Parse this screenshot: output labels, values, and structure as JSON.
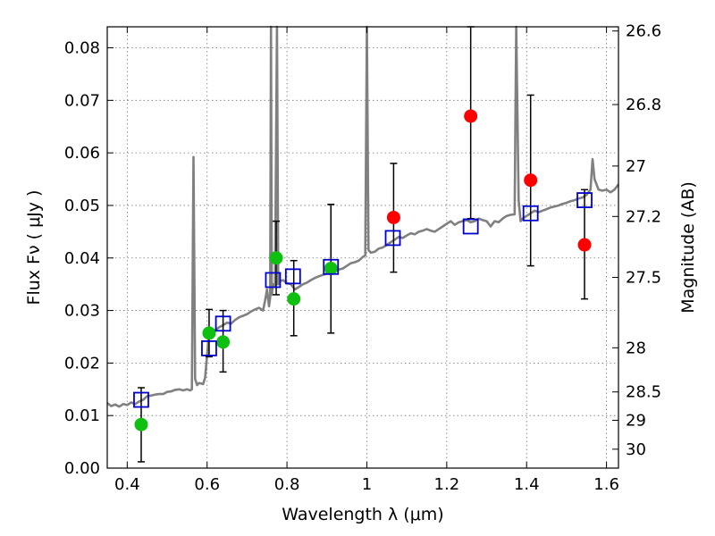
{
  "chart_data": {
    "type": "scatter",
    "xlabel": "Wavelength  λ (μm)",
    "ylabel": "Flux  Fν  ( μJy )",
    "y2label": "Magnitude (AB)",
    "xlim": [
      0.35,
      1.63
    ],
    "ylim": [
      0.0,
      0.084
    ],
    "grid": true,
    "x_ticks": [
      0.4,
      0.6,
      0.8,
      1.0,
      1.2,
      1.4,
      1.6
    ],
    "x_tick_labels": [
      "0.4",
      "0.6",
      "0.8",
      "1",
      "1.2",
      "1.4",
      "1.6"
    ],
    "y_ticks": [
      0.0,
      0.01,
      0.02,
      0.03,
      0.04,
      0.05,
      0.06,
      0.07,
      0.08
    ],
    "y_tick_labels": [
      "0.00",
      "0.01",
      "0.02",
      "0.03",
      "0.04",
      "0.05",
      "0.06",
      "0.07",
      "0.08"
    ],
    "y2_ticks": [
      {
        "label": "26.6",
        "flux": 0.0832
      },
      {
        "label": "26.8",
        "flux": 0.0692
      },
      {
        "label": "27",
        "flux": 0.0575
      },
      {
        "label": "27.2",
        "flux": 0.0479
      },
      {
        "label": "27.5",
        "flux": 0.0363
      },
      {
        "label": "28",
        "flux": 0.0229
      },
      {
        "label": "28.5",
        "flux": 0.0145
      },
      {
        "label": "29",
        "flux": 0.0091
      },
      {
        "label": "30",
        "flux": 0.0036
      }
    ],
    "colors": {
      "model": "#808080",
      "model_photometry": "#0000cc",
      "detected": "#10c010",
      "upper_limit": "#ff0000",
      "errorbar": "#000000"
    },
    "series": [
      {
        "role": "model",
        "style": "line",
        "points": [
          [
            0.35,
            0.0124
          ],
          [
            0.36,
            0.0118
          ],
          [
            0.37,
            0.0121
          ],
          [
            0.38,
            0.0117
          ],
          [
            0.39,
            0.0122
          ],
          [
            0.4,
            0.012
          ],
          [
            0.41,
            0.0125
          ],
          [
            0.42,
            0.0122
          ],
          [
            0.43,
            0.0127
          ],
          [
            0.44,
            0.013
          ],
          [
            0.45,
            0.0137
          ],
          [
            0.46,
            0.0138
          ],
          [
            0.47,
            0.014
          ],
          [
            0.48,
            0.0141
          ],
          [
            0.49,
            0.0141
          ],
          [
            0.5,
            0.0145
          ],
          [
            0.51,
            0.0146
          ],
          [
            0.52,
            0.0149
          ],
          [
            0.53,
            0.015
          ],
          [
            0.54,
            0.0148
          ],
          [
            0.55,
            0.015
          ],
          [
            0.558,
            0.0148
          ],
          [
            0.562,
            0.015
          ],
          [
            0.566,
            0.0592
          ],
          [
            0.57,
            0.017
          ],
          [
            0.575,
            0.0158
          ],
          [
            0.58,
            0.0162
          ],
          [
            0.59,
            0.016
          ],
          [
            0.595,
            0.0172
          ],
          [
            0.6,
            0.0215
          ],
          [
            0.605,
            0.026
          ],
          [
            0.61,
            0.0255
          ],
          [
            0.62,
            0.0262
          ],
          [
            0.63,
            0.0268
          ],
          [
            0.64,
            0.0272
          ],
          [
            0.65,
            0.0277
          ],
          [
            0.66,
            0.0275
          ],
          [
            0.67,
            0.0282
          ],
          [
            0.68,
            0.0287
          ],
          [
            0.69,
            0.029
          ],
          [
            0.7,
            0.0293
          ],
          [
            0.71,
            0.0298
          ],
          [
            0.72,
            0.0302
          ],
          [
            0.73,
            0.0305
          ],
          [
            0.74,
            0.03
          ],
          [
            0.745,
            0.0318
          ],
          [
            0.75,
            0.034
          ],
          [
            0.755,
            0.0308
          ],
          [
            0.758,
            0.0325
          ],
          [
            0.76,
            0.0843
          ],
          [
            0.762,
            0.033
          ],
          [
            0.765,
            0.035
          ],
          [
            0.77,
            0.0345
          ],
          [
            0.775,
            0.0843
          ],
          [
            0.778,
            0.035
          ],
          [
            0.78,
            0.0355
          ],
          [
            0.79,
            0.0358
          ],
          [
            0.8,
            0.0352
          ],
          [
            0.81,
            0.035
          ],
          [
            0.815,
            0.0345
          ],
          [
            0.82,
            0.034
          ],
          [
            0.83,
            0.0345
          ],
          [
            0.84,
            0.035
          ],
          [
            0.85,
            0.0353
          ],
          [
            0.86,
            0.0358
          ],
          [
            0.87,
            0.0362
          ],
          [
            0.88,
            0.0365
          ],
          [
            0.89,
            0.0368
          ],
          [
            0.9,
            0.037
          ],
          [
            0.91,
            0.0372
          ],
          [
            0.92,
            0.0375
          ],
          [
            0.93,
            0.0378
          ],
          [
            0.94,
            0.038
          ],
          [
            0.95,
            0.0385
          ],
          [
            0.96,
            0.039
          ],
          [
            0.97,
            0.0392
          ],
          [
            0.98,
            0.0395
          ],
          [
            0.99,
            0.0402
          ],
          [
            0.996,
            0.0405
          ],
          [
            1.0,
            0.0843
          ],
          [
            1.004,
            0.0415
          ],
          [
            1.01,
            0.041
          ],
          [
            1.02,
            0.0412
          ],
          [
            1.03,
            0.0418
          ],
          [
            1.04,
            0.042
          ],
          [
            1.05,
            0.0425
          ],
          [
            1.06,
            0.043
          ],
          [
            1.07,
            0.0435
          ],
          [
            1.08,
            0.044
          ],
          [
            1.09,
            0.0438
          ],
          [
            1.1,
            0.0443
          ],
          [
            1.11,
            0.0447
          ],
          [
            1.12,
            0.0445
          ],
          [
            1.13,
            0.045
          ],
          [
            1.14,
            0.0452
          ],
          [
            1.15,
            0.0455
          ],
          [
            1.16,
            0.0452
          ],
          [
            1.17,
            0.045
          ],
          [
            1.18,
            0.0455
          ],
          [
            1.19,
            0.046
          ],
          [
            1.2,
            0.0465
          ],
          [
            1.21,
            0.047
          ],
          [
            1.22,
            0.0463
          ],
          [
            1.23,
            0.0468
          ],
          [
            1.24,
            0.047
          ],
          [
            1.25,
            0.0472
          ],
          [
            1.26,
            0.0468
          ],
          [
            1.27,
            0.047
          ],
          [
            1.28,
            0.0475
          ],
          [
            1.29,
            0.0472
          ],
          [
            1.3,
            0.047
          ],
          [
            1.31,
            0.046
          ],
          [
            1.32,
            0.047
          ],
          [
            1.33,
            0.0468
          ],
          [
            1.34,
            0.0475
          ],
          [
            1.35,
            0.048
          ],
          [
            1.36,
            0.0482
          ],
          [
            1.37,
            0.0483
          ],
          [
            1.374,
            0.0843
          ],
          [
            1.38,
            0.051
          ],
          [
            1.385,
            0.047
          ],
          [
            1.39,
            0.0475
          ],
          [
            1.4,
            0.048
          ],
          [
            1.41,
            0.0485
          ],
          [
            1.42,
            0.049
          ],
          [
            1.43,
            0.0487
          ],
          [
            1.44,
            0.049
          ],
          [
            1.45,
            0.0493
          ],
          [
            1.46,
            0.0496
          ],
          [
            1.47,
            0.0498
          ],
          [
            1.48,
            0.05
          ],
          [
            1.49,
            0.0503
          ],
          [
            1.5,
            0.0505
          ],
          [
            1.51,
            0.0508
          ],
          [
            1.52,
            0.051
          ],
          [
            1.53,
            0.0513
          ],
          [
            1.54,
            0.0515
          ],
          [
            1.55,
            0.052
          ],
          [
            1.56,
            0.053
          ],
          [
            1.565,
            0.0588
          ],
          [
            1.57,
            0.055
          ],
          [
            1.58,
            0.053
          ],
          [
            1.59,
            0.0528
          ],
          [
            1.6,
            0.053
          ],
          [
            1.61,
            0.0525
          ],
          [
            1.62,
            0.053
          ],
          [
            1.63,
            0.054
          ]
        ]
      },
      {
        "role": "model_photometry",
        "style": "open-square",
        "points": [
          [
            0.435,
            0.013
          ],
          [
            0.605,
            0.0228
          ],
          [
            0.64,
            0.0275
          ],
          [
            0.765,
            0.0358
          ],
          [
            0.815,
            0.0365
          ],
          [
            0.91,
            0.0383
          ],
          [
            1.065,
            0.0438
          ],
          [
            1.26,
            0.046
          ],
          [
            1.41,
            0.0485
          ],
          [
            1.545,
            0.051
          ]
        ]
      },
      {
        "role": "detected",
        "style": "filled-circle",
        "points": [
          {
            "x": 0.435,
            "y": 0.0083,
            "err_low": 0.0012,
            "err_high": 0.0153
          },
          {
            "x": 0.605,
            "y": 0.0257,
            "err_low": 0.0212,
            "err_high": 0.0302
          },
          {
            "x": 0.64,
            "y": 0.024,
            "err_low": 0.0183,
            "err_high": 0.03
          },
          {
            "x": 0.773,
            "y": 0.04,
            "err_low": 0.033,
            "err_high": 0.047
          },
          {
            "x": 0.817,
            "y": 0.0322,
            "err_low": 0.0252,
            "err_high": 0.0395
          },
          {
            "x": 0.91,
            "y": 0.038,
            "err_low": 0.0257,
            "err_high": 0.0502
          }
        ]
      },
      {
        "role": "upper_limit",
        "style": "filled-circle",
        "points": [
          {
            "x": 1.067,
            "y": 0.0477,
            "err_low": 0.0373,
            "err_high": 0.058
          },
          {
            "x": 1.26,
            "y": 0.067,
            "err_low": 0.0475,
            "err_high": 0.0843
          },
          {
            "x": 1.41,
            "y": 0.0548,
            "err_low": 0.0385,
            "err_high": 0.071
          },
          {
            "x": 1.545,
            "y": 0.0425,
            "err_low": 0.0322,
            "err_high": 0.053
          }
        ]
      }
    ]
  }
}
